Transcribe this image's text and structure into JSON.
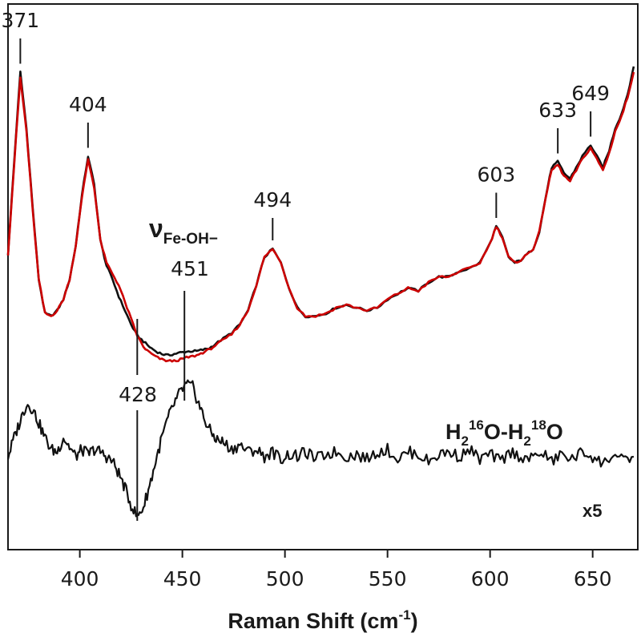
{
  "chart_data": {
    "type": "line",
    "xlabel": "Raman Shift (cm",
    "xlabel_superscript": "-1",
    "xlabel_suffix": ")",
    "xlim": [
      365,
      672
    ],
    "x_ticks": [
      400,
      450,
      500,
      550,
      600,
      650
    ],
    "x_tick_labels": [
      "400",
      "450",
      "500",
      "550",
      "600",
      "650"
    ],
    "y_ticks": [],
    "grid": false,
    "legend": "none",
    "series": [
      {
        "color": "#111111",
        "x": [
          365,
          368,
          371,
          374,
          377,
          380,
          383,
          386,
          389,
          392,
          395,
          398,
          401,
          404,
          407,
          410,
          413,
          416,
          419,
          422,
          425,
          428,
          431,
          434,
          437,
          440,
          443,
          446,
          449,
          451,
          454,
          457,
          460,
          463,
          466,
          470,
          474,
          478,
          482,
          486,
          490,
          494,
          498,
          502,
          506,
          510,
          515,
          520,
          525,
          530,
          535,
          540,
          545,
          550,
          555,
          560,
          565,
          570,
          575,
          580,
          585,
          590,
          595,
          600,
          603,
          606,
          609,
          612,
          615,
          618,
          621,
          624,
          627,
          630,
          633,
          636,
          639,
          642,
          645,
          649,
          652,
          655,
          658,
          661,
          664,
          667,
          670
        ],
        "y": [
          0.25,
          0.58,
          0.9,
          0.7,
          0.42,
          0.16,
          0.04,
          0.03,
          0.05,
          0.09,
          0.16,
          0.28,
          0.46,
          0.6,
          0.5,
          0.3,
          0.21,
          0.16,
          0.1,
          0.05,
          0.0,
          -0.04,
          -0.06,
          -0.08,
          -0.095,
          -0.105,
          -0.11,
          -0.105,
          -0.1,
          -0.098,
          -0.095,
          -0.095,
          -0.09,
          -0.085,
          -0.07,
          -0.05,
          -0.03,
          0.0,
          0.05,
          0.14,
          0.24,
          0.27,
          0.22,
          0.13,
          0.06,
          0.03,
          0.03,
          0.04,
          0.06,
          0.07,
          0.06,
          0.05,
          0.06,
          0.09,
          0.11,
          0.13,
          0.12,
          0.15,
          0.17,
          0.17,
          0.19,
          0.2,
          0.22,
          0.29,
          0.35,
          0.31,
          0.24,
          0.22,
          0.23,
          0.25,
          0.27,
          0.33,
          0.45,
          0.56,
          0.58,
          0.54,
          0.52,
          0.56,
          0.6,
          0.64,
          0.6,
          0.56,
          0.62,
          0.7,
          0.75,
          0.82,
          0.92
        ]
      },
      {
        "color": "#cc0000",
        "x": [
          365,
          368,
          371,
          374,
          377,
          380,
          383,
          386,
          389,
          392,
          395,
          398,
          401,
          404,
          407,
          410,
          413,
          416,
          419,
          422,
          425,
          428,
          431,
          434,
          437,
          440,
          443,
          446,
          449,
          451,
          454,
          457,
          460,
          463,
          466,
          470,
          474,
          478,
          482,
          486,
          490,
          494,
          498,
          502,
          506,
          510,
          515,
          520,
          525,
          530,
          535,
          540,
          545,
          550,
          555,
          560,
          565,
          570,
          575,
          580,
          585,
          590,
          595,
          600,
          603,
          606,
          609,
          612,
          615,
          618,
          621,
          624,
          627,
          630,
          633,
          636,
          639,
          642,
          645,
          649,
          652,
          655,
          658,
          661,
          664,
          667,
          670
        ],
        "y": [
          0.25,
          0.57,
          0.88,
          0.69,
          0.41,
          0.16,
          0.04,
          0.03,
          0.05,
          0.09,
          0.16,
          0.28,
          0.45,
          0.59,
          0.49,
          0.3,
          0.22,
          0.18,
          0.14,
          0.08,
          0.02,
          -0.04,
          -0.08,
          -0.1,
          -0.115,
          -0.125,
          -0.13,
          -0.13,
          -0.125,
          -0.12,
          -0.115,
          -0.11,
          -0.1,
          -0.09,
          -0.075,
          -0.055,
          -0.035,
          0.0,
          0.05,
          0.14,
          0.24,
          0.27,
          0.22,
          0.13,
          0.06,
          0.03,
          0.03,
          0.04,
          0.06,
          0.07,
          0.06,
          0.05,
          0.06,
          0.09,
          0.11,
          0.13,
          0.12,
          0.15,
          0.17,
          0.17,
          0.19,
          0.2,
          0.22,
          0.29,
          0.35,
          0.31,
          0.24,
          0.22,
          0.23,
          0.25,
          0.27,
          0.33,
          0.45,
          0.55,
          0.57,
          0.53,
          0.51,
          0.55,
          0.59,
          0.63,
          0.59,
          0.55,
          0.61,
          0.69,
          0.74,
          0.81,
          0.9
        ]
      },
      {
        "color": "#111111",
        "x": [
          365,
          368,
          371,
          374,
          377,
          380,
          383,
          386,
          389,
          392,
          395,
          398,
          401,
          404,
          407,
          410,
          413,
          416,
          419,
          422,
          425,
          428,
          431,
          434,
          437,
          440,
          443,
          446,
          449,
          452,
          455,
          458,
          461,
          464,
          467,
          470,
          474,
          478,
          482,
          486,
          490,
          494,
          498,
          502,
          506,
          510,
          515,
          520,
          525,
          530,
          535,
          540,
          545,
          550,
          555,
          560,
          565,
          570,
          575,
          580,
          585,
          590,
          595,
          600,
          605,
          610,
          615,
          620,
          625,
          630,
          635,
          640,
          645,
          650,
          655,
          660,
          665,
          670
        ],
        "y": [
          0.0,
          0.08,
          0.15,
          0.22,
          0.2,
          0.14,
          0.08,
          0.03,
          0.02,
          0.08,
          0.04,
          0.0,
          0.03,
          0.01,
          0.03,
          0.02,
          0.0,
          -0.02,
          -0.07,
          -0.13,
          -0.2,
          -0.25,
          -0.21,
          -0.12,
          -0.02,
          0.08,
          0.16,
          0.22,
          0.27,
          0.3,
          0.29,
          0.22,
          0.15,
          0.1,
          0.07,
          0.06,
          0.03,
          0.05,
          0.02,
          0.03,
          0.0,
          0.02,
          -0.01,
          0.01,
          0.0,
          0.02,
          -0.01,
          0.01,
          0.02,
          0.0,
          0.01,
          -0.01,
          0.02,
          0.03,
          -0.01,
          0.02,
          0.01,
          -0.02,
          0.01,
          0.02,
          0.0,
          0.03,
          -0.01,
          0.01,
          -0.02,
          0.02,
          0.0,
          -0.01,
          0.02,
          -0.02,
          0.01,
          -0.01,
          0.02,
          0.0,
          -0.03,
          0.01,
          -0.02,
          0.0
        ]
      }
    ],
    "peak_labels": [
      {
        "text": "371",
        "x": 371,
        "tick_y1": 0.93,
        "tick_y2": 1.02,
        "label_y": 1.06
      },
      {
        "text": "404",
        "x": 404,
        "tick_y1": 0.63,
        "tick_y2": 0.72,
        "label_y": 0.76
      },
      {
        "text": "494",
        "x": 494,
        "tick_y1": 0.3,
        "tick_y2": 0.38,
        "label_y": 0.42
      },
      {
        "text": "603",
        "x": 603,
        "tick_y1": 0.38,
        "tick_y2": 0.47,
        "label_y": 0.51
      },
      {
        "text": "633",
        "x": 633,
        "tick_y1": 0.61,
        "tick_y2": 0.7,
        "label_y": 0.74
      },
      {
        "text": "649",
        "x": 649,
        "tick_y1": 0.67,
        "tick_y2": 0.76,
        "label_y": 0.8
      }
    ],
    "annotations": {
      "nu_label": "ν",
      "nu_subscript": "Fe-OH−",
      "label_451": "451",
      "label_428": "428",
      "difference_label_parts": [
        "H",
        "2",
        "16",
        "O-H",
        "2",
        "18",
        "O"
      ],
      "scale_label": "x5"
    }
  }
}
